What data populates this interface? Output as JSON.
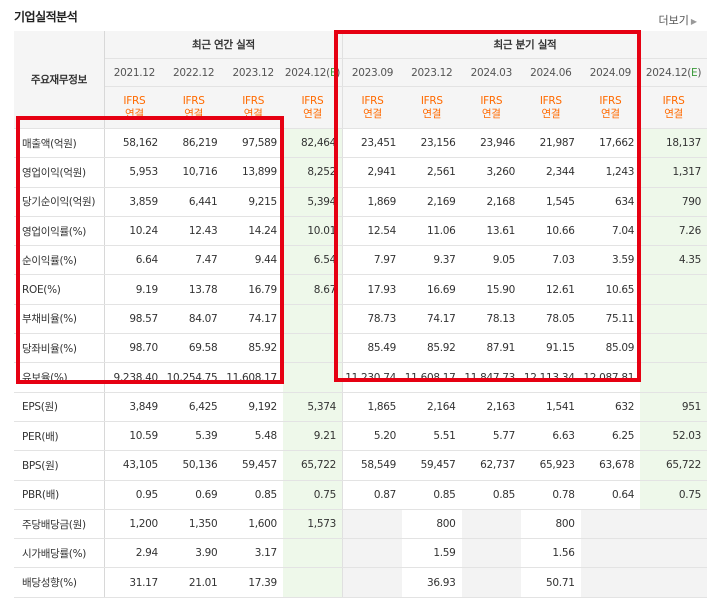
{
  "section": {
    "title": "기업실적분석",
    "more_label": "더보기",
    "more_icon": "chevron-right-icon"
  },
  "header": {
    "row_label": "주요재무정보",
    "annual_title": "최근 연간 실적",
    "quarter_title": "최근 분기 실적",
    "periods": [
      "2021.12",
      "2022.12",
      "2023.12",
      "2024.12(E)",
      "2023.09",
      "2023.12",
      "2024.03",
      "2024.06",
      "2024.09",
      "2024.12(E)"
    ],
    "ifrs": "IFRS",
    "consol": "연결"
  },
  "rows": [
    {
      "label": "매출액(억원)",
      "values": [
        "58,162",
        "86,219",
        "97,589",
        "82,464",
        "23,451",
        "23,156",
        "23,946",
        "21,987",
        "17,662",
        "18,137"
      ]
    },
    {
      "label": "영업이익(억원)",
      "values": [
        "5,953",
        "10,716",
        "13,899",
        "8,252",
        "2,941",
        "2,561",
        "3,260",
        "2,344",
        "1,243",
        "1,317"
      ]
    },
    {
      "label": "당기순이익(억원)",
      "values": [
        "3,859",
        "6,441",
        "9,215",
        "5,394",
        "1,869",
        "2,169",
        "2,168",
        "1,545",
        "634",
        "790"
      ]
    },
    {
      "label": "영업이익률(%)",
      "values": [
        "10.24",
        "12.43",
        "14.24",
        "10.01",
        "12.54",
        "11.06",
        "13.61",
        "10.66",
        "7.04",
        "7.26"
      ]
    },
    {
      "label": "순이익률(%)",
      "values": [
        "6.64",
        "7.47",
        "9.44",
        "6.54",
        "7.97",
        "9.37",
        "9.05",
        "7.03",
        "3.59",
        "4.35"
      ]
    },
    {
      "label": "ROE(%)",
      "values": [
        "9.19",
        "13.78",
        "16.79",
        "8.67",
        "17.93",
        "16.69",
        "15.90",
        "12.61",
        "10.65",
        ""
      ]
    },
    {
      "label": "부채비율(%)",
      "values": [
        "98.57",
        "84.07",
        "74.17",
        "",
        "78.73",
        "74.17",
        "78.13",
        "78.05",
        "75.11",
        ""
      ]
    },
    {
      "label": "당좌비율(%)",
      "values": [
        "98.70",
        "69.58",
        "85.92",
        "",
        "85.49",
        "85.92",
        "87.91",
        "91.15",
        "85.09",
        ""
      ]
    },
    {
      "label": "유보율(%)",
      "values": [
        "9,238.40",
        "10,254.75",
        "11,608.17",
        "",
        "11,230.74",
        "11,608.17",
        "11,847.73",
        "12,113.34",
        "12,087.81",
        ""
      ]
    },
    {
      "label": "EPS(원)",
      "values": [
        "3,849",
        "6,425",
        "9,192",
        "5,374",
        "1,865",
        "2,164",
        "2,163",
        "1,541",
        "632",
        "951"
      ]
    },
    {
      "label": "PER(배)",
      "values": [
        "10.59",
        "5.39",
        "5.48",
        "9.21",
        "5.20",
        "5.51",
        "5.77",
        "6.63",
        "6.25",
        "52.03"
      ]
    },
    {
      "label": "BPS(원)",
      "values": [
        "43,105",
        "50,136",
        "59,457",
        "65,722",
        "58,549",
        "59,457",
        "62,737",
        "65,923",
        "63,678",
        "65,722"
      ]
    },
    {
      "label": "PBR(배)",
      "values": [
        "0.95",
        "0.69",
        "0.85",
        "0.75",
        "0.87",
        "0.85",
        "0.85",
        "0.78",
        "0.64",
        "0.75"
      ]
    },
    {
      "label": "주당배당금(원)",
      "values": [
        "1,200",
        "1,350",
        "1,600",
        "1,573",
        "",
        "800",
        "",
        "800",
        "",
        ""
      ]
    },
    {
      "label": "시가배당률(%)",
      "values": [
        "2.94",
        "3.90",
        "3.17",
        "",
        "",
        "1.59",
        "",
        "1.56",
        "",
        ""
      ]
    },
    {
      "label": "배당성향(%)",
      "values": [
        "31.17",
        "21.01",
        "17.39",
        "",
        "",
        "36.93",
        "",
        "50.71",
        "",
        ""
      ]
    }
  ],
  "colors": {
    "ifrs": "#ff6a00",
    "estimate_bg": "#eef8ea",
    "highlight": "#e60012"
  }
}
